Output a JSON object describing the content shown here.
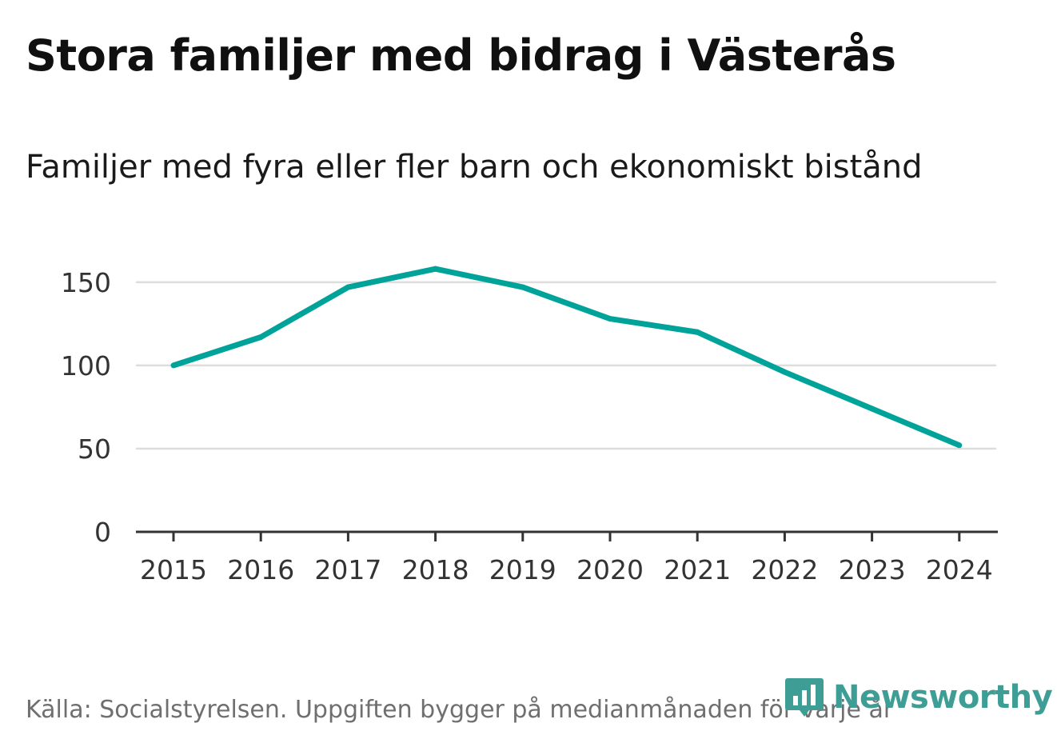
{
  "header": {
    "title": "Stora familjer med bidrag i Västerås",
    "subtitle": "Familjer med fyra eller fler barn och ekonomiskt bistånd"
  },
  "footer": {
    "source": "Källa: Socialstyrelsen. Uppgiften bygger på medianmånaden för varje år",
    "brand": "Newsworthy",
    "brand_icon": "newsworthy-logo-icon"
  },
  "colors": {
    "line": "#00a39a",
    "grid": "#dddddd",
    "axis": "#333333",
    "brand": "#3e9e95"
  },
  "chart_data": {
    "type": "line",
    "title": "Stora familjer med bidrag i Västerås",
    "subtitle": "Familjer med fyra eller fler barn och ekonomiskt bistånd",
    "xlabel": "",
    "ylabel": "",
    "categories": [
      "2015",
      "2016",
      "2017",
      "2018",
      "2019",
      "2020",
      "2021",
      "2022",
      "2023",
      "2024"
    ],
    "series": [
      {
        "name": "Familjer med fyra eller fler barn och ekonomiskt bistånd",
        "values": [
          100,
          117,
          147,
          158,
          147,
          128,
          120,
          96,
          74,
          52
        ]
      }
    ],
    "ylim": [
      0,
      160
    ],
    "yticks": [
      0,
      50,
      100,
      150
    ],
    "grid": true,
    "legend": "none"
  }
}
